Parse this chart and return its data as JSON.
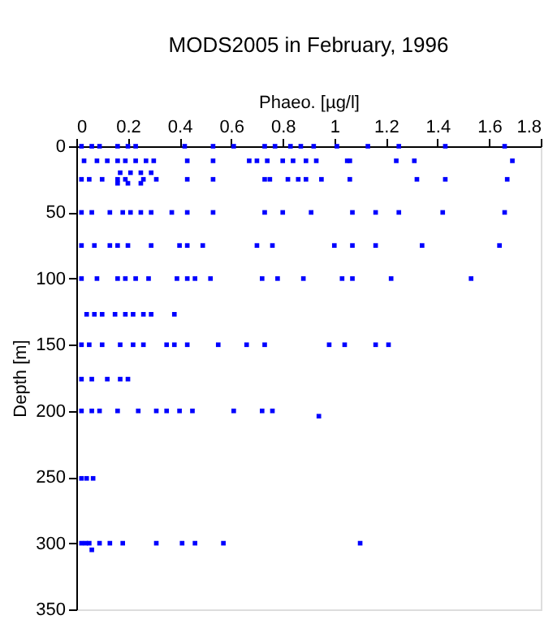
{
  "chart_data": {
    "type": "scatter",
    "title": "MODS2005 in February, 1996",
    "xlabel": "Phaeo. [µg/l]",
    "ylabel": "Depth [m]",
    "xlim": [
      0,
      1.8
    ],
    "xticks": [
      0,
      0.2,
      0.4,
      0.6,
      0.8,
      1,
      1.2,
      1.4,
      1.6,
      1.8
    ],
    "ylim": [
      350,
      0
    ],
    "yticks": [
      0,
      50,
      100,
      150,
      200,
      250,
      300,
      350
    ],
    "grid": false,
    "marker": "square",
    "series": [
      {
        "color": "#0000ff",
        "x": [
          0.02,
          0.06,
          0.09,
          0.16,
          0.2,
          0.23,
          0.42,
          0.53,
          0.61,
          0.73,
          0.77,
          0.83,
          0.87,
          0.92,
          1.01,
          1.13,
          1.25,
          1.43,
          1.66,
          0.03,
          0.08,
          0.12,
          0.16,
          0.19,
          0.23,
          0.27,
          0.3,
          0.43,
          0.53,
          0.67,
          0.7,
          0.74,
          0.8,
          0.84,
          0.89,
          0.93,
          1.05,
          1.06,
          1.24,
          1.31,
          1.69,
          0.17,
          0.21,
          0.25,
          0.29,
          0.02,
          0.05,
          0.1,
          0.16,
          0.19,
          0.26,
          0.31,
          0.43,
          0.53,
          0.73,
          0.75,
          0.82,
          0.86,
          0.89,
          0.95,
          1.06,
          1.32,
          1.43,
          1.67,
          0.16,
          0.2,
          0.25,
          0.02,
          0.06,
          0.13,
          0.18,
          0.21,
          0.25,
          0.29,
          0.37,
          0.43,
          0.53,
          0.73,
          0.8,
          0.91,
          1.07,
          1.16,
          1.25,
          1.42,
          1.66,
          0.02,
          0.07,
          0.13,
          0.16,
          0.2,
          0.29,
          0.4,
          0.43,
          0.49,
          0.7,
          0.76,
          1.0,
          1.07,
          1.16,
          1.34,
          1.64,
          0.02,
          0.08,
          0.16,
          0.19,
          0.23,
          0.28,
          0.39,
          0.43,
          0.46,
          0.52,
          0.72,
          0.78,
          0.88,
          1.03,
          1.07,
          1.22,
          1.53,
          0.04,
          0.07,
          0.1,
          0.15,
          0.19,
          0.22,
          0.26,
          0.29,
          0.38,
          0.02,
          0.05,
          0.1,
          0.17,
          0.22,
          0.26,
          0.35,
          0.38,
          0.43,
          0.55,
          0.66,
          0.73,
          0.98,
          1.04,
          1.16,
          1.21,
          0.02,
          0.06,
          0.12,
          0.17,
          0.2,
          0.02,
          0.06,
          0.09,
          0.16,
          0.24,
          0.31,
          0.35,
          0.4,
          0.45,
          0.61,
          0.72,
          0.76,
          0.94,
          0.02,
          0.04,
          0.065,
          0.02,
          0.036,
          0.05,
          0.09,
          0.13,
          0.18,
          0.31,
          0.41,
          0.46,
          0.57,
          1.1,
          0.06
        ],
        "values": [
          0,
          0,
          0,
          0,
          0,
          0,
          0,
          0,
          0,
          0,
          0,
          0,
          0,
          0,
          0,
          0,
          0,
          0,
          0,
          11,
          11,
          11,
          11,
          11,
          11,
          11,
          11,
          11,
          11,
          11,
          11,
          11,
          11,
          11,
          11,
          11,
          11,
          11,
          11,
          11,
          11,
          20,
          20,
          20,
          20,
          25,
          25,
          25,
          25,
          25,
          25,
          25,
          25,
          25,
          25,
          25,
          25,
          25,
          25,
          25,
          25,
          25,
          25,
          25,
          28,
          28,
          28,
          50,
          50,
          50,
          50,
          50,
          50,
          50,
          50,
          50,
          50,
          50,
          50,
          50,
          50,
          50,
          50,
          50,
          50,
          75,
          75,
          75,
          75,
          75,
          75,
          75,
          75,
          75,
          75,
          75,
          75,
          75,
          75,
          75,
          75,
          100,
          100,
          100,
          100,
          100,
          100,
          100,
          100,
          100,
          100,
          100,
          100,
          100,
          100,
          100,
          100,
          100,
          127,
          127,
          127,
          127,
          127,
          127,
          127,
          127,
          127,
          150,
          150,
          150,
          150,
          150,
          150,
          150,
          150,
          150,
          150,
          150,
          150,
          150,
          150,
          150,
          150,
          176,
          176,
          176,
          176,
          176,
          200,
          200,
          200,
          200,
          200,
          200,
          200,
          200,
          200,
          200,
          200,
          200,
          204,
          251,
          251,
          251,
          300,
          300,
          300,
          300,
          300,
          300,
          300,
          300,
          300,
          300,
          300,
          305
        ]
      }
    ]
  }
}
